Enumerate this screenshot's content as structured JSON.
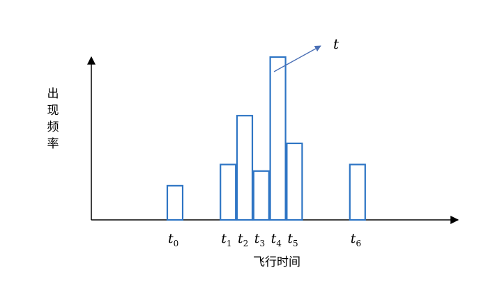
{
  "chart_data": {
    "type": "bar",
    "xlabel": "飞行时间",
    "ylabel": "出现频率",
    "ylim": [
      0,
      10
    ],
    "grid": false,
    "bar_color": "#2e75c4",
    "axis_color": "#000000",
    "bars": [
      {
        "label": "t",
        "sub": "0",
        "x": 0,
        "value": 2.1
      },
      {
        "label": "t",
        "sub": "1",
        "x": 3.2,
        "value": 3.4
      },
      {
        "label": "t",
        "sub": "2",
        "x": 4.2,
        "value": 6.4
      },
      {
        "label": "t",
        "sub": "3",
        "x": 5.2,
        "value": 3.0
      },
      {
        "label": "t",
        "sub": "4",
        "x": 6.2,
        "value": 10.0
      },
      {
        "label": "t",
        "sub": "5",
        "x": 7.2,
        "value": 4.7
      },
      {
        "label": "t",
        "sub": "6",
        "x": 11.0,
        "value": 3.4
      }
    ],
    "annotation": {
      "text": "t",
      "arrow_color": "#4a6fb5",
      "points_to": "t4 bar"
    }
  }
}
